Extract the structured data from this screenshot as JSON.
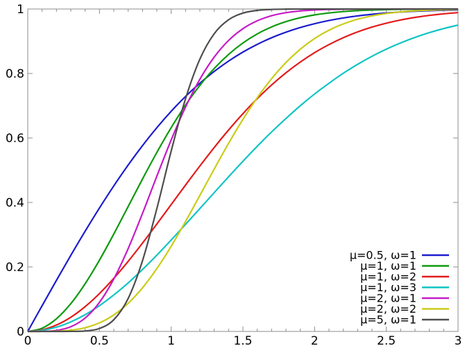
{
  "chart_data": {
    "type": "line",
    "title": "",
    "xlabel": "",
    "ylabel": "",
    "xlim": [
      0,
      3
    ],
    "ylim": [
      0,
      1
    ],
    "grid": "off",
    "legend_position": "lower right",
    "x_major_ticks": [
      0,
      0.5,
      1,
      1.5,
      2,
      2.5,
      3
    ],
    "x_major_labels": [
      "0",
      "0.5",
      "1",
      "1.5",
      "2",
      "2.5",
      "3"
    ],
    "x_minor_step": 0.1,
    "y_major_ticks": [
      0,
      0.2,
      0.4,
      0.6,
      0.8,
      1
    ],
    "y_major_labels": [
      "0",
      "0.2",
      "0.4",
      "0.6",
      "0.8",
      "1"
    ],
    "x_start": 0,
    "x_step": 0.1,
    "series": [
      {
        "name": "μ=0.5, ω=1",
        "color": "#1c1ccd",
        "values": [
          0,
          0.0797,
          0.1585,
          0.2358,
          0.3108,
          0.3829,
          0.4515,
          0.5161,
          0.5763,
          0.6319,
          0.6827,
          0.7287,
          0.7699,
          0.8064,
          0.8385,
          0.8664,
          0.8904,
          0.9109,
          0.9281,
          0.9426,
          0.9545,
          0.9643,
          0.9722,
          0.9786,
          0.9836,
          0.9876,
          0.9907,
          0.9931,
          0.9949,
          0.9963,
          0.9973
        ]
      },
      {
        "name": "μ=1, ω=1",
        "color": "#0d9a0d",
        "values": [
          0,
          0.01,
          0.0392,
          0.0861,
          0.1479,
          0.2212,
          0.3023,
          0.3874,
          0.4727,
          0.5551,
          0.6321,
          0.7018,
          0.7631,
          0.8155,
          0.8591,
          0.8946,
          0.9227,
          0.9444,
          0.9608,
          0.973,
          0.9817,
          0.9878,
          0.9921,
          0.995,
          0.9968,
          0.9981,
          0.9988,
          0.9993,
          0.9996,
          0.9998,
          0.9999
        ]
      },
      {
        "name": "μ=1, ω=2",
        "color": "#e31a1a",
        "values": [
          0,
          0.005,
          0.0198,
          0.044,
          0.0769,
          0.1175,
          0.1647,
          0.2173,
          0.2739,
          0.333,
          0.3935,
          0.4539,
          0.5132,
          0.5704,
          0.6247,
          0.6753,
          0.722,
          0.7643,
          0.8021,
          0.8355,
          0.8647,
          0.8897,
          0.9111,
          0.929,
          0.9439,
          0.9561,
          0.966,
          0.9739,
          0.9802,
          0.9851,
          0.9889
        ]
      },
      {
        "name": "μ=1, ω=3",
        "color": "#0fc4c4",
        "values": [
          0,
          0.0033,
          0.0132,
          0.0296,
          0.0519,
          0.08,
          0.1131,
          0.1505,
          0.192,
          0.2366,
          0.2835,
          0.332,
          0.3812,
          0.4305,
          0.4795,
          0.5276,
          0.5743,
          0.6188,
          0.6604,
          0.7,
          0.7364,
          0.7697,
          0.8008,
          0.8285,
          0.8534,
          0.8755,
          0.8949,
          0.912,
          0.9267,
          0.9394,
          0.9502
        ]
      },
      {
        "name": "μ=2, ω=1",
        "color": "#c61ac6",
        "values": [
          0,
          0.0002,
          0.003,
          0.0144,
          0.0415,
          0.0902,
          0.1628,
          0.2569,
          0.3661,
          0.4815,
          0.594,
          0.6959,
          0.7822,
          0.8509,
          0.9024,
          0.9389,
          0.9634,
          0.9791,
          0.9885,
          0.994,
          0.997,
          0.9986,
          0.9993,
          0.9997,
          0.9999,
          0.9999,
          1,
          1,
          1,
          1,
          1
        ]
      },
      {
        "name": "μ=2, ω=2",
        "color": "#cbcb1a",
        "values": [
          0,
          0.0001,
          0.0008,
          0.0038,
          0.0115,
          0.0265,
          0.0512,
          0.0872,
          0.1352,
          0.1948,
          0.2642,
          0.341,
          0.4219,
          0.5036,
          0.5831,
          0.6575,
          0.7248,
          0.7838,
          0.834,
          0.8753,
          0.9084,
          0.9342,
          0.9538,
          0.9683,
          0.9787,
          0.986,
          0.991,
          0.9943,
          0.9965,
          0.9979,
          0.9988
        ]
      },
      {
        "name": "μ=5, ω=1",
        "color": "#4d4d4d",
        "values": [
          0,
          0,
          0,
          0.0001,
          0.0014,
          0.0091,
          0.0364,
          0.1022,
          0.2194,
          0.3809,
          0.5595,
          0.7216,
          0.8445,
          0.9234,
          0.9667,
          0.9872,
          0.9957,
          0.9987,
          0.9997,
          0.9999,
          1,
          1,
          1,
          1,
          1,
          1,
          1,
          1,
          1,
          1,
          1
        ]
      }
    ]
  },
  "colors": {
    "background": "#ffffff",
    "frame": "#8c8c8c",
    "tick": "#8c8c8c",
    "text": "#000000"
  }
}
